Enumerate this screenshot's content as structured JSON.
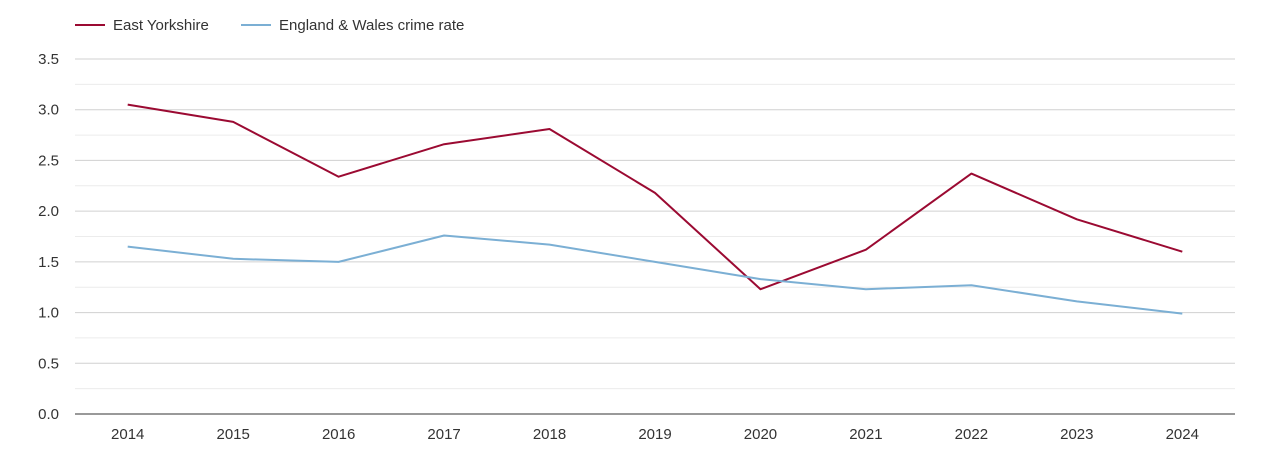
{
  "chart_data": {
    "type": "line",
    "title": "",
    "xlabel": "",
    "ylabel": "",
    "categories": [
      "2014",
      "2015",
      "2016",
      "2017",
      "2018",
      "2019",
      "2020",
      "2021",
      "2022",
      "2023",
      "2024"
    ],
    "ylim": [
      0,
      3.5
    ],
    "yticks": [
      "0.0",
      "0.5",
      "1.0",
      "1.5",
      "2.0",
      "2.5",
      "3.0",
      "3.5"
    ],
    "grid": true,
    "legend": "top-left",
    "series": [
      {
        "name": "East Yorkshire",
        "color": "#9b0a32",
        "values": [
          3.05,
          2.88,
          2.34,
          2.66,
          2.81,
          2.18,
          1.23,
          1.62,
          2.37,
          1.92,
          1.6
        ]
      },
      {
        "name": "England & Wales crime rate",
        "color": "#7bafd4",
        "values": [
          1.65,
          1.53,
          1.5,
          1.76,
          1.67,
          1.5,
          1.33,
          1.23,
          1.27,
          1.11,
          0.99
        ]
      }
    ]
  }
}
